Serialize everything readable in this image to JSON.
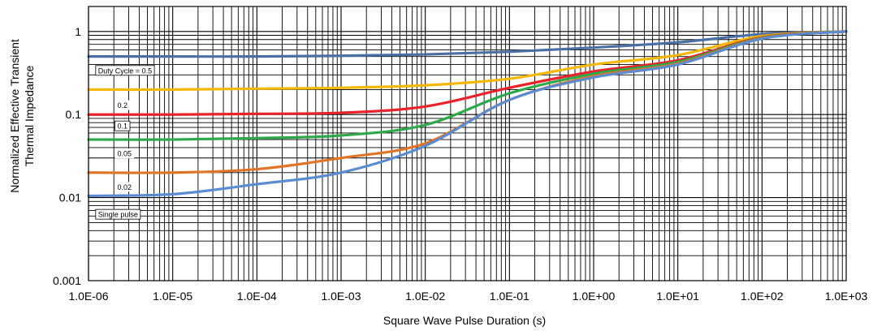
{
  "chart_data": {
    "type": "line",
    "title": "",
    "xlabel": "Square Wave Pulse Duration (s)",
    "ylabel_lines": [
      "Normalized Effective Transient",
      "Thermal Impedance"
    ],
    "x_scale": "log",
    "y_scale": "log",
    "xlim": [
      1e-06,
      1000
    ],
    "ylim": [
      0.001,
      2
    ],
    "x_tick_labels": [
      "1.0E-06",
      "1.0E-05",
      "1.0E-04",
      "1.0E-03",
      "1.0E-02",
      "1.0E-01",
      "1.0E+00",
      "1.0E+01",
      "1.0E+02",
      "1.0E+03"
    ],
    "y_tick_labels": [
      "0.001",
      "0.01",
      "0.1",
      "1"
    ],
    "grid": true,
    "x": [
      1e-06,
      1e-05,
      0.0001,
      0.001,
      0.01,
      0.1,
      1,
      10,
      100,
      1000
    ],
    "series": [
      {
        "name": "Duty Cycle = 0.5",
        "color": "#4a6fa5",
        "values": [
          0.5,
          0.5,
          0.5,
          0.51,
          0.53,
          0.57,
          0.64,
          0.74,
          0.93,
          1.0
        ]
      },
      {
        "name": "0.2",
        "color": "#f5b800",
        "values": [
          0.2,
          0.2,
          0.205,
          0.21,
          0.225,
          0.27,
          0.4,
          0.52,
          0.88,
          1.0
        ]
      },
      {
        "name": "0.1",
        "color": "#e8232b",
        "values": [
          0.1,
          0.1,
          0.102,
          0.105,
          0.125,
          0.21,
          0.33,
          0.45,
          0.85,
          1.0
        ]
      },
      {
        "name": "0.05",
        "color": "#2ea84a",
        "values": [
          0.05,
          0.05,
          0.052,
          0.056,
          0.075,
          0.18,
          0.31,
          0.43,
          0.84,
          1.0
        ]
      },
      {
        "name": "0.02",
        "color": "#e07428",
        "values": [
          0.02,
          0.02,
          0.022,
          0.03,
          0.045,
          0.15,
          0.29,
          0.41,
          0.83,
          1.0
        ]
      },
      {
        "name": "Single pulse",
        "color": "#5b8bd0",
        "values": [
          0.0105,
          0.011,
          0.0145,
          0.02,
          0.042,
          0.15,
          0.28,
          0.4,
          0.82,
          1.0
        ]
      }
    ],
    "annotations": [
      {
        "text": "Duty Cycle = 0.5",
        "x": 1.3e-06,
        "y": 0.34,
        "boxed": true
      },
      {
        "text": "0.2",
        "x": 2.2e-06,
        "y": 0.13,
        "boxed": false
      },
      {
        "text": "0.1",
        "x": 2.2e-06,
        "y": 0.073,
        "boxed": true
      },
      {
        "text": "0.05",
        "x": 2.2e-06,
        "y": 0.034,
        "boxed": false
      },
      {
        "text": "0.02",
        "x": 2.2e-06,
        "y": 0.0135,
        "boxed": false
      },
      {
        "text": "Single pulse",
        "x": 1.3e-06,
        "y": 0.0063,
        "boxed": true
      }
    ]
  }
}
